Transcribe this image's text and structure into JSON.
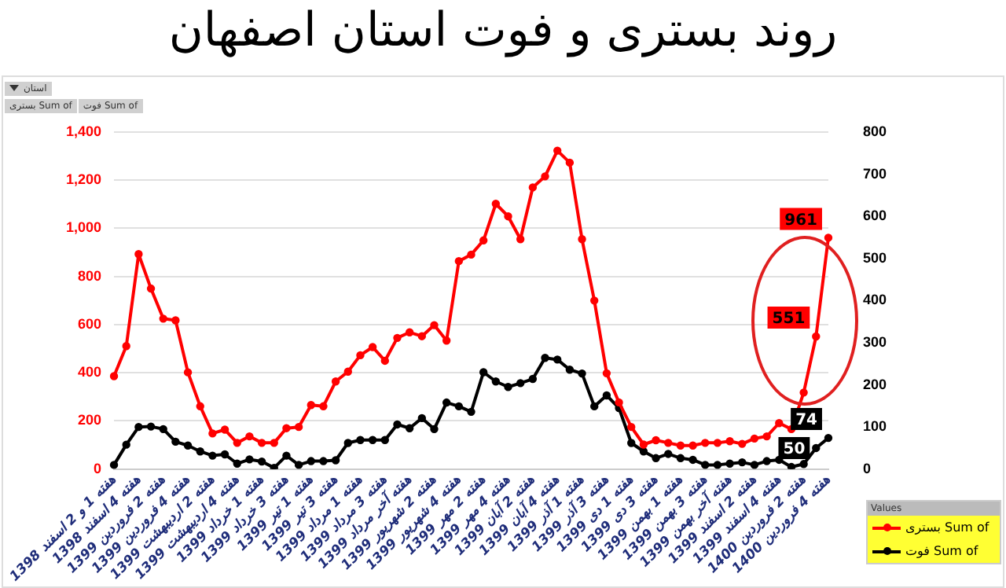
{
  "chart_data": {
    "type": "line",
    "title": "روند بستری و فوت استان اصفهان",
    "categories": [
      "هفته 1 و 2 اسفند 1398",
      null,
      "هفته 4 اسفند 1398",
      null,
      "هفته 2 فروردین 1399",
      null,
      "هفته 4 فروردین 1399",
      null,
      "هفته 2 اردیبهشت 1399",
      null,
      "هفته 4 اردیبهشت 1399",
      null,
      "هفته 1 خرداد 1399",
      null,
      "هفته 3 خرداد 1399",
      null,
      "هفته 1 تیر 1399",
      null,
      "هفته 3 تیر 1399",
      null,
      "هفته 1 مرداد 1399",
      null,
      "هفته 3 مرداد 1399",
      null,
      "هفته آخر مرداد 1399",
      null,
      "هفته 2 شهریور 1399",
      null,
      "هفته 4 شهریور 1399",
      null,
      "هفته 2 مهر 1399",
      null,
      "هفته 4 مهر 1399",
      null,
      "هفته 2 آبان 1399",
      null,
      "هفته 4 آبان 1399",
      null,
      "هفته 1 آذر 1399",
      null,
      "هفته 3 آذر 1399",
      null,
      "هفته 1 دی 1399",
      null,
      "هفته 3 دی 1399",
      null,
      "هفته 1 بهمن 1399",
      null,
      "هفته 3 بهمن 1399",
      null,
      "هفته آخر بهمن 1399",
      null,
      "هفته 2 اسفند 1399",
      null,
      "هفته 4 اسفند 1399",
      null,
      "هفته 2 فروردین 1400",
      null,
      "هفته 4 فروردین 1400"
    ],
    "series": [
      {
        "name": "Sum of بستری",
        "color": "#ff0000",
        "values": [
          386,
          511,
          893,
          750,
          625,
          618,
          402,
          261,
          148,
          164,
          109,
          136,
          109,
          109,
          170,
          175,
          266,
          261,
          364,
          405,
          473,
          507,
          450,
          545,
          568,
          552,
          598,
          534,
          864,
          891,
          950,
          1102,
          1050,
          955,
          1170,
          1216,
          1323,
          1273,
          955,
          700,
          398,
          277,
          175,
          102,
          120,
          109,
          98,
          98,
          109,
          109,
          116,
          105,
          127,
          136,
          191,
          166,
          318,
          551,
          961
        ],
        "value_labels": [
          null,
          null,
          null,
          null,
          null,
          null,
          null,
          null,
          null,
          null,
          null,
          null,
          null,
          null,
          null,
          null,
          null,
          null,
          null,
          null,
          null,
          null,
          null,
          null,
          null,
          null,
          null,
          null,
          null,
          null,
          null,
          null,
          null,
          null,
          null,
          null,
          null,
          null,
          null,
          null,
          null,
          null,
          null,
          null,
          null,
          null,
          null,
          null,
          null,
          null,
          null,
          null,
          null,
          null,
          null,
          null,
          null,
          "551",
          "961"
        ]
      },
      {
        "name": "Sum of فوت",
        "color": "#000000",
        "axis": "y2",
        "values": [
          10,
          58,
          100,
          101,
          95,
          65,
          56,
          42,
          32,
          35,
          13,
          23,
          18,
          3,
          32,
          10,
          19,
          19,
          21,
          62,
          69,
          69,
          69,
          106,
          97,
          121,
          95,
          158,
          149,
          136,
          230,
          208,
          195,
          204,
          214,
          264,
          260,
          236,
          227,
          149,
          175,
          145,
          62,
          42,
          26,
          36,
          26,
          22,
          10,
          10,
          13,
          16,
          10,
          19,
          22,
          5,
          12,
          50,
          74
        ],
        "value_labels": [
          null,
          null,
          null,
          null,
          null,
          null,
          null,
          null,
          null,
          null,
          null,
          null,
          null,
          null,
          null,
          null,
          null,
          null,
          null,
          null,
          null,
          null,
          null,
          null,
          null,
          null,
          null,
          null,
          null,
          null,
          null,
          null,
          null,
          null,
          null,
          null,
          null,
          null,
          null,
          null,
          null,
          null,
          null,
          null,
          null,
          null,
          null,
          null,
          null,
          null,
          null,
          null,
          null,
          null,
          null,
          null,
          null,
          "50",
          "74"
        ]
      }
    ],
    "ylim": [
      0,
      1400
    ],
    "yticks": [
      0,
      200,
      400,
      600,
      800,
      {
        "value": 1000,
        "label": "1,000"
      },
      {
        "value": 1200,
        "label": "1,200"
      },
      {
        "value": 1400,
        "label": "1,400"
      }
    ],
    "y2lim": [
      0,
      800
    ],
    "y2ticks": [
      0,
      100,
      200,
      300,
      400,
      500,
      600,
      700,
      800
    ],
    "grid": "y",
    "legend": "bottom right",
    "legend_title": "Values",
    "marker": "circle",
    "line_style": "solid",
    "annotations": [
      "استان",
      "Sum of بستری",
      "Sum of فوت"
    ]
  }
}
